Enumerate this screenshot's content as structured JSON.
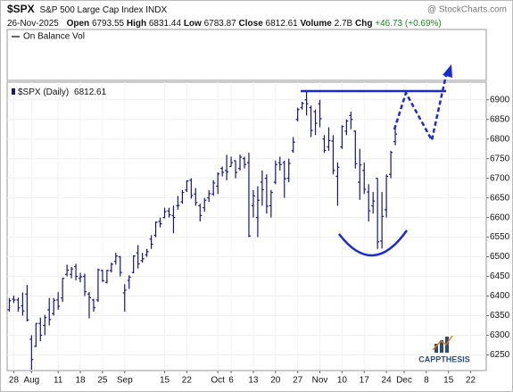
{
  "header": {
    "symbol": "$SPX",
    "name": "S&P 500 Large Cap Index INDX",
    "source": "@ StockCharts.com",
    "date": "26-Nov-2025",
    "open_label": "Open",
    "high_label": "High",
    "low_label": "Low",
    "close_label": "Close",
    "volume_label": "Volume",
    "volume": "2.7B",
    "chg_label": "Chg",
    "chg": "+46.73 (+0.69%)"
  },
  "indicator": "On Balance Vol",
  "logo": "CAPPTHESIS",
  "chart_data": {
    "type": "ohlc",
    "categories": [
      null,
      "28",
      null,
      null,
      null,
      "Aug",
      null,
      null,
      null,
      null,
      null,
      "11",
      null,
      null,
      null,
      null,
      "18",
      null,
      null,
      null,
      null,
      "25",
      null,
      null,
      null,
      null,
      "Sep",
      null,
      null,
      null,
      null,
      null,
      null,
      null,
      null,
      "15",
      null,
      null,
      null,
      null,
      "22",
      null,
      null,
      null,
      null,
      null,
      null,
      "Oct",
      null,
      null,
      "6",
      null,
      null,
      null,
      null,
      "13",
      null,
      null,
      null,
      null,
      "20",
      null,
      null,
      null,
      null,
      "27",
      null,
      null,
      null,
      null,
      "Nov",
      null,
      null,
      null,
      null,
      "10",
      null,
      null,
      null,
      null,
      "17",
      null,
      null,
      null,
      null,
      "24",
      null,
      null,
      null,
      "Dec",
      null,
      null,
      null,
      null,
      "8",
      null,
      null,
      null,
      null,
      "15",
      null,
      null,
      null,
      null,
      "22",
      null,
      null
    ],
    "series": [
      {
        "name": "$SPX (Daily)",
        "color": "#14148c",
        "open": [
          6365,
          6392,
          6390,
          6375,
          6405,
          6290,
          6272,
          6330,
          6325,
          6365,
          6355,
          6390,
          6395,
          6455,
          6455,
          6475,
          6445,
          6450,
          6405,
          6390,
          6390,
          6465,
          6435,
          6465,
          6488,
          6500,
          6408,
          6440,
          6460,
          6510,
          6490,
          6505,
          6545,
          6555,
          6590,
          6600,
          6617,
          6605,
          6630,
          6640,
          6670,
          6695,
          6660,
          6630,
          6625,
          6650,
          6660,
          6680,
          6725,
          6720,
          6730,
          6745,
          6725,
          6750,
          6740,
          6630,
          6600,
          6690,
          6700,
          6630,
          6690,
          6740,
          6740,
          6700,
          6770,
          6850,
          6880,
          6900,
          6880,
          6870,
          6890,
          6800,
          6780,
          6795,
          6705,
          6780,
          6820,
          6860,
          6820,
          6690,
          6720,
          6665,
          6630,
          6700,
          6540,
          6620,
          6710,
          6793.55,
          null,
          null,
          null,
          null,
          null,
          null,
          null,
          null,
          null,
          null,
          null,
          null,
          null,
          null,
          null,
          null,
          null,
          null,
          null
        ],
        "high": [
          6395,
          6401,
          6396,
          6409,
          6428,
          6300,
          6331,
          6345,
          6352,
          6395,
          6395,
          6410,
          6446,
          6480,
          6474,
          6482,
          6459,
          6457,
          6410,
          6393,
          6470,
          6467,
          6467,
          6485,
          6510,
          6502,
          6430,
          6453,
          6504,
          6530,
          6510,
          6520,
          6555,
          6590,
          6600,
          6625,
          6625,
          6630,
          6655,
          6670,
          6695,
          6700,
          6675,
          6635,
          6650,
          6670,
          6695,
          6715,
          6730,
          6760,
          6755,
          6745,
          6760,
          6755,
          6765,
          6670,
          6680,
          6720,
          6710,
          6670,
          6745,
          6755,
          6745,
          6750,
          6805,
          6880,
          6895,
          6920,
          6885,
          6875,
          6900,
          6810,
          6830,
          6810,
          6740,
          6835,
          6850,
          6870,
          6822,
          6775,
          6740,
          6685,
          6665,
          6700,
          6665,
          6710,
          6770,
          6831.44,
          null,
          null,
          null,
          null,
          null,
          null,
          null,
          null,
          null,
          null,
          null,
          null,
          null,
          null,
          null,
          null,
          null,
          null,
          null
        ],
        "low": [
          6360,
          6382,
          6360,
          6350,
          6335,
          6212,
          6270,
          6285,
          6300,
          6325,
          6350,
          6365,
          6385,
          6450,
          6445,
          6440,
          6435,
          6400,
          6343,
          6360,
          6385,
          6436,
          6432,
          6460,
          6480,
          6450,
          6360,
          6418,
          6458,
          6470,
          6485,
          6500,
          6520,
          6550,
          6575,
          6598,
          6600,
          6560,
          6620,
          6635,
          6665,
          6648,
          6630,
          6590,
          6615,
          6640,
          6655,
          6660,
          6705,
          6695,
          6730,
          6700,
          6720,
          6725,
          6550,
          6600,
          6550,
          6630,
          6610,
          6600,
          6685,
          6720,
          6650,
          6690,
          6765,
          6845,
          6875,
          6860,
          6805,
          6810,
          6830,
          6765,
          6770,
          6710,
          6630,
          6775,
          6810,
          6825,
          6725,
          6645,
          6660,
          6590,
          6610,
          6520,
          6521,
          6600,
          6700,
          6783.87,
          null,
          null,
          null,
          null,
          null,
          null,
          null,
          null,
          null,
          null,
          null,
          null,
          null,
          null,
          null,
          null,
          null,
          null,
          null
        ],
        "close": [
          6388,
          6390,
          6370,
          6362,
          6339,
          6238,
          6330,
          6300,
          6345,
          6340,
          6389,
          6374,
          6445,
          6466,
          6469,
          6450,
          6449,
          6411,
          6396,
          6370,
          6467,
          6439,
          6465,
          6481,
          6502,
          6460,
          6415,
          6448,
          6502,
          6482,
          6495,
          6513,
          6532,
          6588,
          6584,
          6615,
          6607,
          6600,
          6631,
          6664,
          6693,
          6656,
          6638,
          6605,
          6644,
          6661,
          6688,
          6711,
          6715,
          6716,
          6740,
          6715,
          6754,
          6735,
          6553,
          6655,
          6644,
          6671,
          6629,
          6664,
          6735,
          6735,
          6699,
          6738,
          6792,
          6875,
          6891,
          6890,
          6822,
          6840,
          6852,
          6771,
          6796,
          6720,
          6728,
          6832,
          6846,
          6850,
          6737,
          6734,
          6672,
          6617,
          6642,
          6538,
          6603,
          6705,
          6766,
          6812.61,
          null,
          null,
          null,
          null,
          null,
          null,
          null,
          null,
          null,
          null,
          null,
          null,
          null,
          null,
          null,
          null,
          null,
          null,
          null
        ]
      }
    ],
    "ylim": [
      6210,
      6945
    ],
    "yticks": [
      6250,
      6300,
      6350,
      6400,
      6450,
      6500,
      6550,
      6600,
      6650,
      6700,
      6750,
      6800,
      6850,
      6900
    ],
    "grid": true
  }
}
